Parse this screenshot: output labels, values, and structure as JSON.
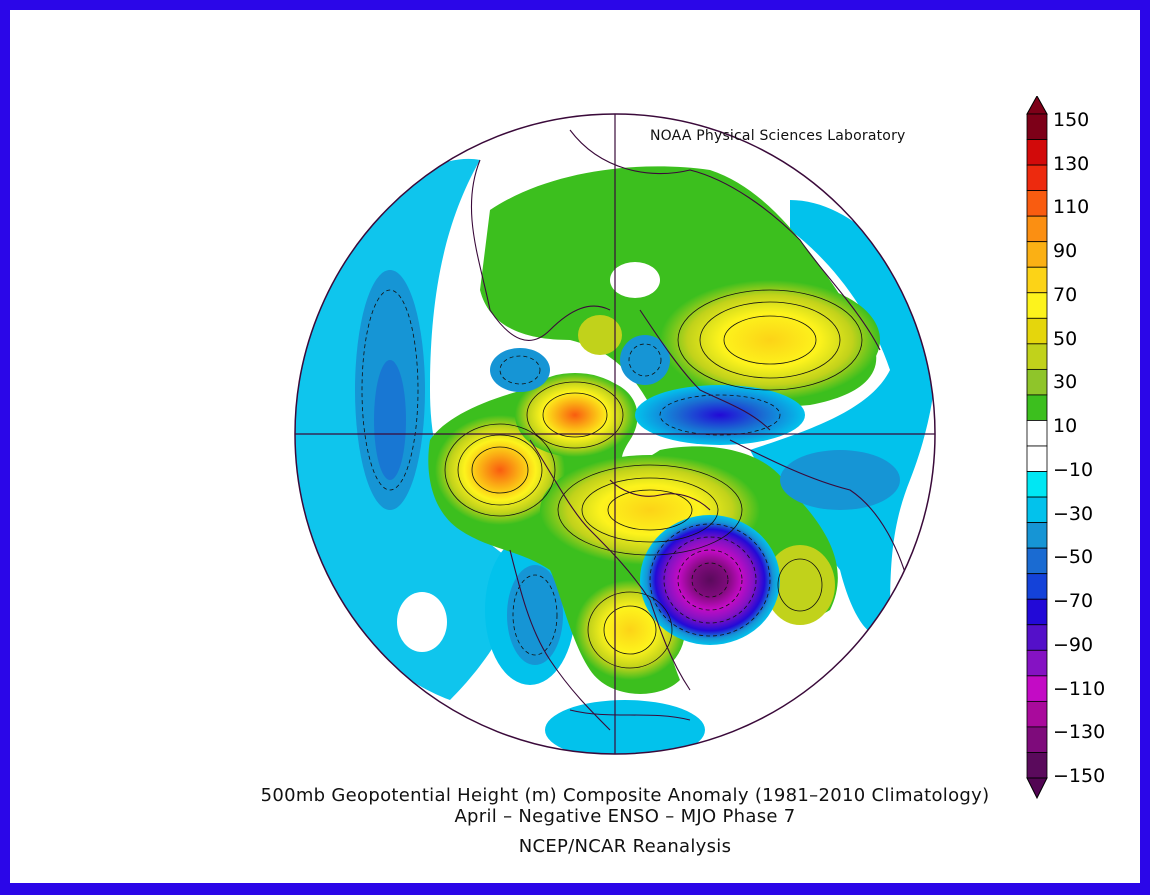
{
  "credit": "NOAA Physical Sciences Laboratory",
  "title": {
    "line1": "500mb Geopotential Height (m) Composite Anomaly (1981–2010 Climatology)",
    "line2": "April – Negative ENSO – MJO Phase 7",
    "line3": "NCEP/NCAR Reanalysis"
  },
  "colorbar": {
    "labels": [
      "150",
      "130",
      "110",
      "90",
      "70",
      "50",
      "30",
      "10",
      "−10",
      "−30",
      "−50",
      "−70",
      "−90",
      "−110",
      "−130",
      "−150"
    ],
    "colors": [
      "#7d0018",
      "#d20a0a",
      "#ed2a0e",
      "#f95c10",
      "#fb8f12",
      "#fbb014",
      "#fcd317",
      "#fdf31c",
      "#e5d60c",
      "#c1d21b",
      "#8fc52a",
      "#3cbf1e",
      "#ffffff",
      "#ffffff",
      "#00e7f3",
      "#02c2ec",
      "#1695d5",
      "#1a6bd2",
      "#1442d9",
      "#2209d7",
      "#5410c9",
      "#8512c3",
      "#c30bc5",
      "#a90a9c",
      "#7e0b7b",
      "#5a0a5c"
    ],
    "arrow_top_color": "#7d0018",
    "arrow_bottom_color": "#520553"
  },
  "map": {
    "projection": "north-polar-stereographic",
    "field": "500mb geopotential height anomaly",
    "units": "m"
  }
}
